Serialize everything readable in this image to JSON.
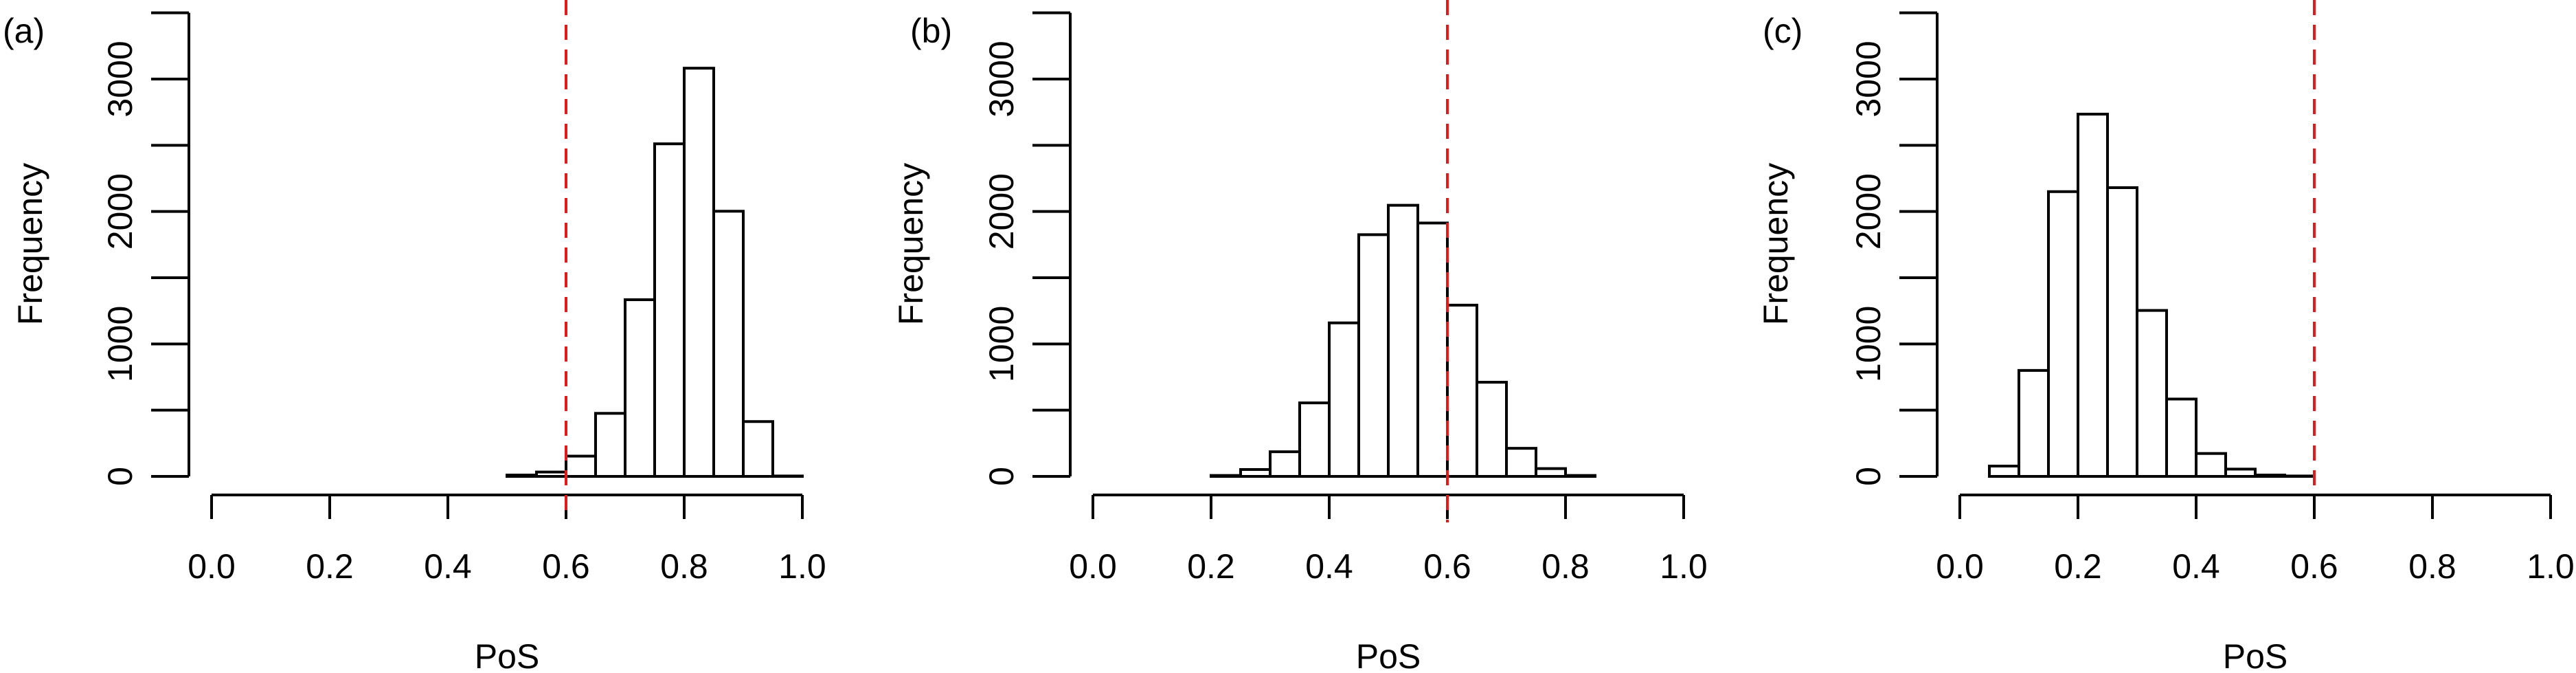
{
  "chart_data": [
    {
      "type": "bar",
      "panel_label": "(a)",
      "xlabel": "PoS",
      "ylabel": "Frequency",
      "xlim": [
        0,
        1
      ],
      "ylim": [
        0,
        3500
      ],
      "x_ticks": [
        "0.0",
        "0.2",
        "0.4",
        "0.6",
        "0.8",
        "1.0"
      ],
      "y_ticks": [
        "0",
        "1000",
        "2000",
        "3000"
      ],
      "bin_width": 0.05,
      "bin_starts": [
        0.5,
        0.55,
        0.6,
        0.65,
        0.7,
        0.75,
        0.8,
        0.85,
        0.9,
        0.95
      ],
      "values": [
        10,
        33,
        153,
        476,
        1334,
        2511,
        3082,
        2002,
        414,
        3
      ],
      "reference_line_x": 0.6,
      "reference_line_color": "#e31a1c"
    },
    {
      "type": "bar",
      "panel_label": "(b)",
      "xlabel": "PoS",
      "ylabel": "Frequency",
      "xlim": [
        0,
        1
      ],
      "ylim": [
        0,
        3500
      ],
      "x_ticks": [
        "0.0",
        "0.2",
        "0.4",
        "0.6",
        "0.8",
        "1.0"
      ],
      "y_ticks": [
        "0",
        "1000",
        "2000",
        "3000"
      ],
      "bin_width": 0.05,
      "bin_starts": [
        0.2,
        0.25,
        0.3,
        0.35,
        0.4,
        0.45,
        0.5,
        0.55,
        0.6,
        0.65,
        0.7,
        0.75,
        0.8
      ],
      "values": [
        7,
        52,
        186,
        555,
        1159,
        1825,
        2047,
        1913,
        1293,
        711,
        212,
        59,
        7
      ],
      "reference_line_x": 0.6,
      "reference_line_color": "#e31a1c"
    },
    {
      "type": "bar",
      "panel_label": "(c)",
      "xlabel": "PoS",
      "ylabel": "Frequency",
      "xlim": [
        0,
        1
      ],
      "ylim": [
        0,
        3500
      ],
      "x_ticks": [
        "0.0",
        "0.2",
        "0.4",
        "0.6",
        "0.8",
        "1.0"
      ],
      "y_ticks": [
        "0",
        "1000",
        "2000",
        "3000"
      ],
      "bin_width": 0.05,
      "bin_starts": [
        0.05,
        0.1,
        0.15,
        0.2,
        0.25,
        0.3,
        0.35,
        0.4,
        0.45,
        0.5,
        0.55
      ],
      "values": [
        78,
        800,
        2150,
        2735,
        2180,
        1253,
        584,
        173,
        55,
        10,
        3
      ],
      "reference_line_x": 0.6,
      "reference_line_color": "#e31a1c"
    }
  ]
}
